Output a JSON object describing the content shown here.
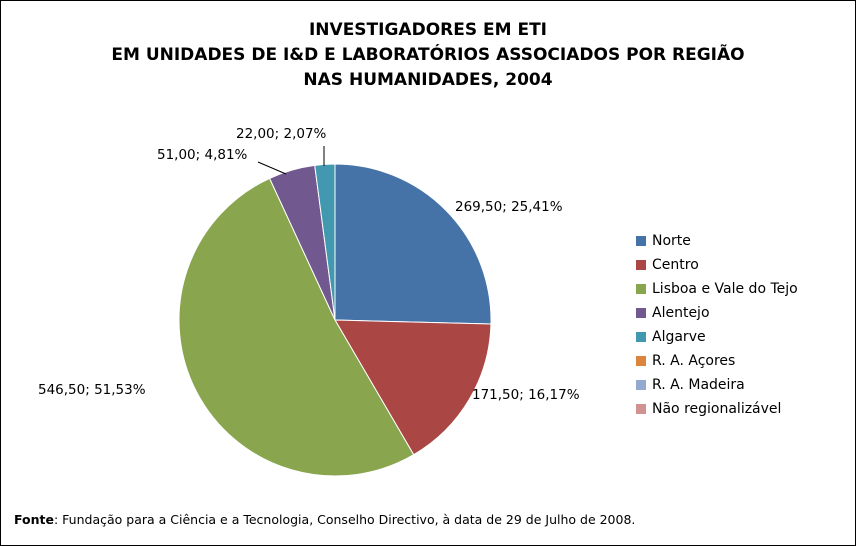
{
  "chart_data": {
    "type": "pie",
    "title": [
      "INVESTIGADORES EM ETI",
      "EM UNIDADES DE I&D E LABORATÓRIOS ASSOCIADOS POR REGIÃO",
      "NAS HUMANIDADES, 2004"
    ],
    "slices": [
      {
        "name": "Norte",
        "value": 269.5,
        "label": "269,50; 25,41%",
        "color": "#4572A7"
      },
      {
        "name": "Centro",
        "value": 171.5,
        "label": "171,50; 16,17%",
        "color": "#AA4643"
      },
      {
        "name": "Lisboa e Vale do Tejo",
        "value": 546.5,
        "label": "546,50; 51,53%",
        "color": "#89A54E"
      },
      {
        "name": "Alentejo",
        "value": 51.0,
        "label": "51,00; 4,81%",
        "color": "#71588F"
      },
      {
        "name": "Algarve",
        "value": 22.0,
        "label": "22,00; 2,07%",
        "color": "#4198AF"
      },
      {
        "name": "R. A. Açores",
        "value": 0,
        "label": "",
        "color": "#DB843D"
      },
      {
        "name": "R. A. Madeira",
        "value": 0,
        "label": "",
        "color": "#93A9CF"
      },
      {
        "name": "Não regionalizável",
        "value": 0,
        "label": "",
        "color": "#D19392"
      }
    ],
    "legend_position": "right"
  },
  "source": {
    "label": "Fonte",
    "text": ": Fundação para a Ciência e a Tecnologia, Conselho Directivo, à data de 29 de Julho de 2008."
  }
}
